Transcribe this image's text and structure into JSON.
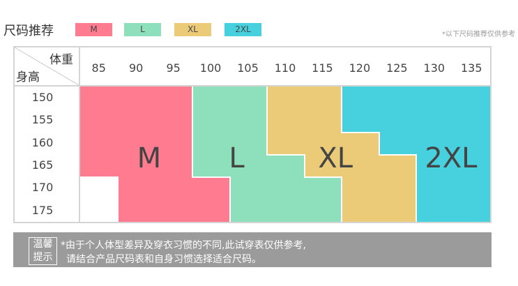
{
  "title": "尺码推荐",
  "note": "*以下尺码推荐仅供参考",
  "sizes": [
    {
      "label": "M",
      "color": "#ff7b8f"
    },
    {
      "label": "L",
      "color": "#8ee0bc"
    },
    {
      "label": "XL",
      "color": "#eccb78"
    },
    {
      "label": "2XL",
      "color": "#47d1de"
    }
  ],
  "table": {
    "weight_label": "体重",
    "height_label": "身高",
    "weights": [
      "85",
      "90",
      "95",
      "100",
      "105",
      "110",
      "115",
      "120",
      "125",
      "130",
      "135"
    ],
    "heights": [
      "150",
      "155",
      "160",
      "165",
      "170",
      "175"
    ],
    "grid": [
      [
        "M",
        "M",
        "M",
        "L",
        "L",
        "XL",
        "XL",
        "2XL",
        "2XL",
        "2XL",
        "2XL"
      ],
      [
        "M",
        "M",
        "M",
        "L",
        "L",
        "XL",
        "XL",
        "2XL",
        "2XL",
        "2XL",
        "2XL"
      ],
      [
        "M",
        "M",
        "M",
        "L",
        "L",
        "XL",
        "XL",
        "XL",
        "2XL",
        "2XL",
        "2XL"
      ],
      [
        "M",
        "M",
        "M",
        "L",
        "L",
        "L",
        "XL",
        "XL",
        "XL",
        "2XL",
        "2XL"
      ],
      [
        "",
        "M",
        "M",
        "M",
        "L",
        "L",
        "L",
        "XL",
        "XL",
        "2XL",
        "2XL"
      ],
      [
        "",
        "M",
        "M",
        "M",
        "L",
        "L",
        "L",
        "XL",
        "XL",
        "2XL",
        "2XL"
      ]
    ]
  },
  "tip": {
    "label_1": "温馨",
    "label_2": "提示",
    "line_1": "*由于个人体型差异及穿衣习惯的不同,此试穿表仅供参考,",
    "line_2": "请结合产品尺码表和自身习惯选择适合尺码。"
  }
}
